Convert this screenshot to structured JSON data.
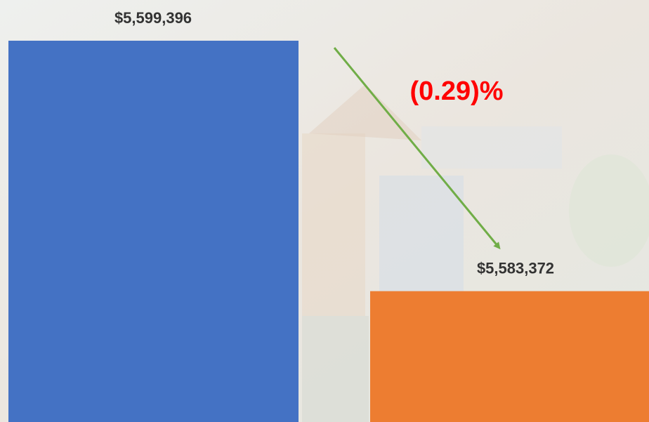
{
  "chart_data": {
    "type": "bar",
    "categories": [
      null,
      null
    ],
    "values": [
      5599396,
      5583372
    ],
    "value_labels": [
      "$5,599,396",
      "$5,583,372"
    ],
    "colors": [
      "#4472c4",
      "#ed7d31"
    ],
    "ylim": [
      5575000,
      5602000
    ],
    "annotation": "(0.29)%"
  }
}
